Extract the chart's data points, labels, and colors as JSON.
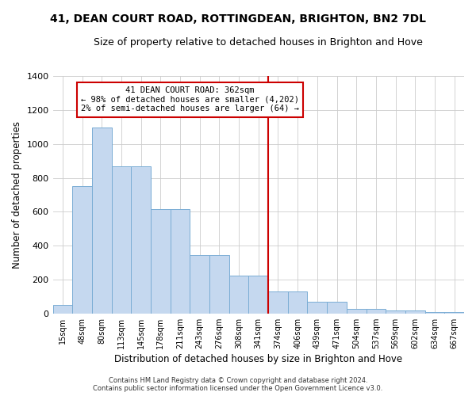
{
  "title": "41, DEAN COURT ROAD, ROTTINGDEAN, BRIGHTON, BN2 7DL",
  "subtitle": "Size of property relative to detached houses in Brighton and Hove",
  "xlabel": "Distribution of detached houses by size in Brighton and Hove",
  "ylabel": "Number of detached properties",
  "categories": [
    "15sqm",
    "48sqm",
    "80sqm",
    "113sqm",
    "145sqm",
    "178sqm",
    "211sqm",
    "243sqm",
    "276sqm",
    "308sqm",
    "341sqm",
    "374sqm",
    "406sqm",
    "439sqm",
    "471sqm",
    "504sqm",
    "537sqm",
    "569sqm",
    "602sqm",
    "634sqm",
    "667sqm"
  ],
  "bar_heights": [
    50,
    750,
    1100,
    870,
    870,
    615,
    615,
    345,
    345,
    225,
    225,
    130,
    130,
    70,
    70,
    25,
    25,
    20,
    20,
    10,
    10
  ],
  "bar_color": "#c5d8ef",
  "bar_edge_color": "#7aadd4",
  "vline_color": "#cc0000",
  "vline_index": 11,
  "annotation_text": "41 DEAN COURT ROAD: 362sqm\n← 98% of detached houses are smaller (4,202)\n2% of semi-detached houses are larger (64) →",
  "annotation_box_color": "#cc0000",
  "ylim": [
    0,
    1400
  ],
  "yticks": [
    0,
    200,
    400,
    600,
    800,
    1000,
    1200,
    1400
  ],
  "bg_color": "#ffffff",
  "plot_bg_color": "#ffffff",
  "grid_color": "#cccccc",
  "footer": "Contains HM Land Registry data © Crown copyright and database right 2024.\nContains public sector information licensed under the Open Government Licence v3.0.",
  "title_fontsize": 10,
  "subtitle_fontsize": 9
}
